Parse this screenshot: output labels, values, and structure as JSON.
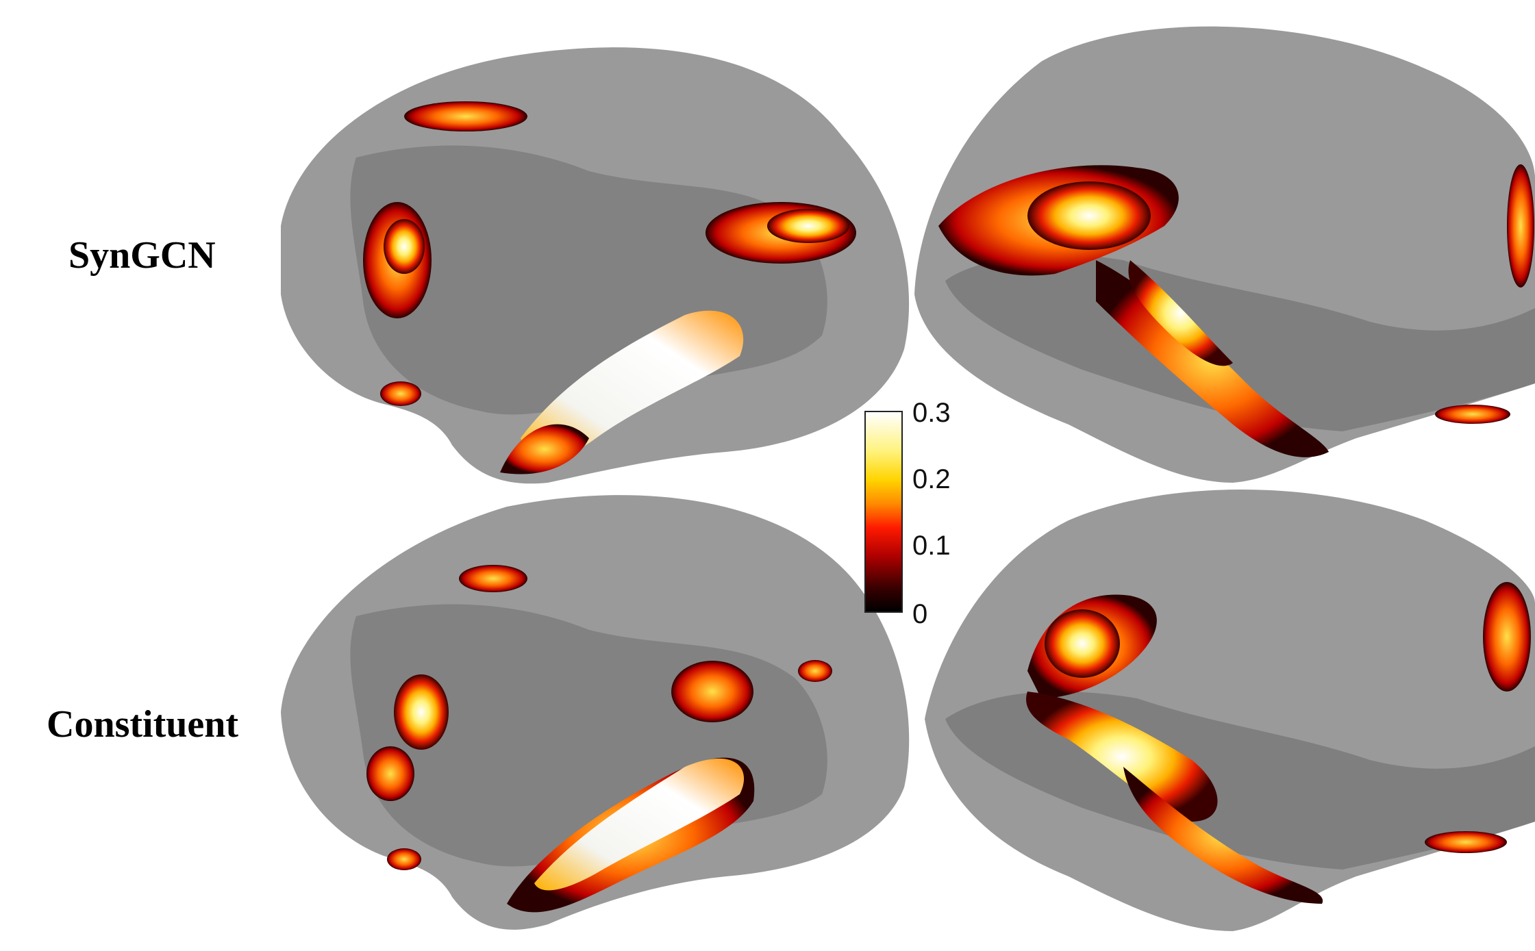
{
  "rows": [
    {
      "label": "SynGCN"
    },
    {
      "label": "Constituent"
    }
  ],
  "colorbar": {
    "ticks": [
      "0.3",
      "0.2",
      "0.1",
      "0"
    ],
    "colormap": [
      "#000000",
      "#b00000",
      "#ff1a00",
      "#ff8a00",
      "#ffd400",
      "#ffffff"
    ]
  },
  "colors": {
    "cortex_light": "#9a9a9a",
    "cortex_dark": "#7a7a7a"
  }
}
